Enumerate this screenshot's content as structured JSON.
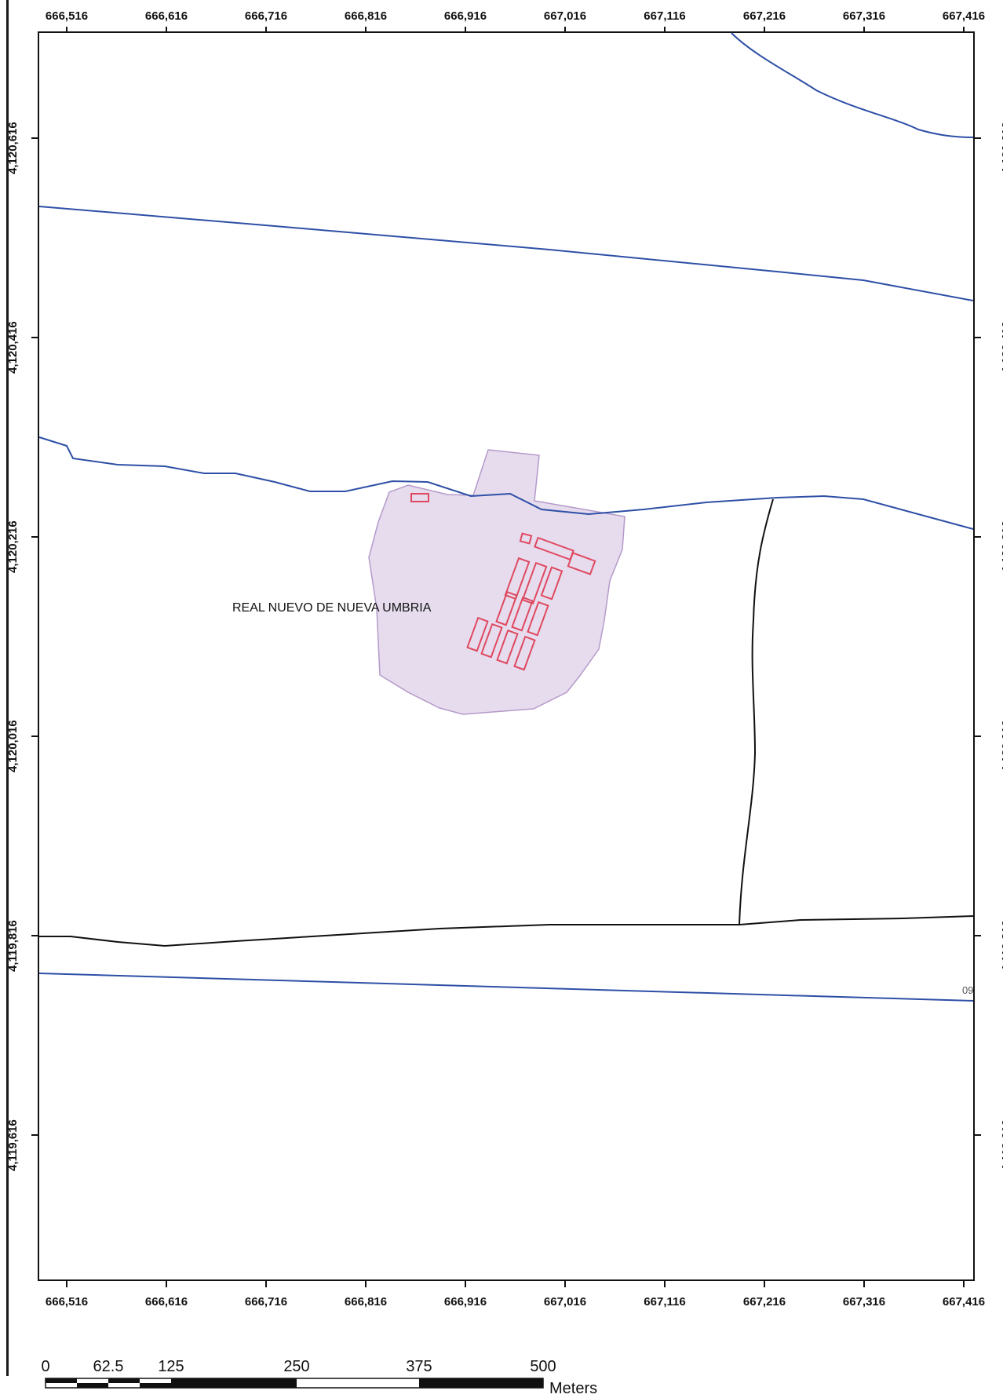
{
  "map": {
    "x_ticks": [
      "666,516",
      "666,616",
      "666,716",
      "666,816",
      "666,916",
      "667,016",
      "667,116",
      "667,216",
      "667,316",
      "667,416"
    ],
    "y_ticks": [
      "4,120,616",
      "4,120,416",
      "4,120,216",
      "4,120,016",
      "4,119,816",
      "4,119,616"
    ],
    "place_label": "REAL NUEVO DE NUEVA UMBRIA",
    "road_code": "09",
    "colors": {
      "road": "#2e4fa6",
      "track": "#111111",
      "parcel_fill": "#e6dcee",
      "parcel_stroke": "#b59ac9",
      "building": "#e0485f"
    }
  },
  "scale_bar": {
    "labels": [
      "0",
      "62.5",
      "125",
      "250",
      "375",
      "500"
    ],
    "unit": "Meters"
  }
}
